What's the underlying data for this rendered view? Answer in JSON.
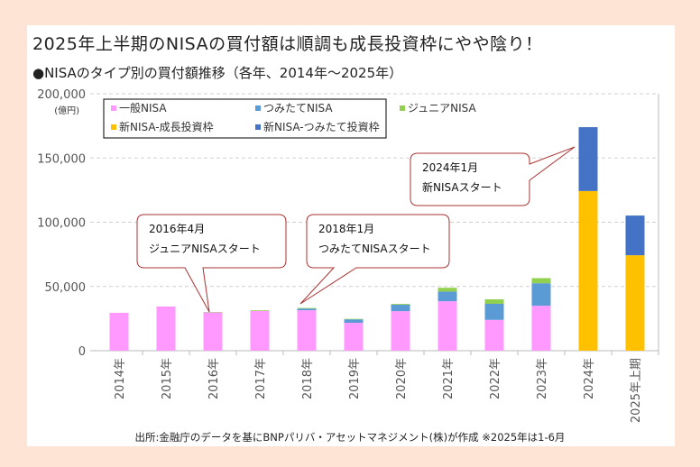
{
  "title": "2025年上半期のNISAの買付額は順調も成長投資枠にやや陰り！",
  "subtitle": "●NISAのタイプ別の買付額推移（各年、2014年～2025年）",
  "footer": "出所:金融庁のデータを基にBNPパリバ・アセットマネジメント(株)が作成 ※2025年は1-6月",
  "chart_data": {
    "type": "bar",
    "stacked": true,
    "ylabel": "(億円)",
    "ylim": [
      0,
      200000
    ],
    "yticks": [
      "0",
      "50,000",
      "100,000",
      "150,000",
      "200,000"
    ],
    "ytick_values": [
      0,
      50000,
      100000,
      150000,
      200000
    ],
    "grid": "horizontal dashed",
    "legend_placement": "top-left",
    "categories": [
      "2014年",
      "2015年",
      "2016年",
      "2017年",
      "2018年",
      "2019年",
      "2020年",
      "2021年",
      "2022年",
      "2023年",
      "2024年",
      "2025年上期"
    ],
    "series": [
      {
        "name": "一般NISA",
        "color": "#ff99ff",
        "values": [
          29500,
          34400,
          29800,
          31000,
          31500,
          21700,
          30800,
          38500,
          24000,
          35000,
          0,
          0
        ]
      },
      {
        "name": "つみたてNISA",
        "color": "#5b9bd5",
        "values": [
          0,
          0,
          0,
          0,
          1300,
          2700,
          5000,
          7500,
          12500,
          17500,
          0,
          0
        ]
      },
      {
        "name": "ジュニアNISA",
        "color": "#92d050",
        "values": [
          0,
          0,
          300,
          500,
          500,
          400,
          600,
          3000,
          3500,
          4000,
          0,
          0
        ]
      },
      {
        "name": "新NISA-成長投資枠",
        "color": "#ffc000",
        "values": [
          0,
          0,
          0,
          0,
          0,
          0,
          0,
          0,
          0,
          0,
          124300,
          74300
        ]
      },
      {
        "name": "新NISA-つみたて投資枠",
        "color": "#4472c4",
        "values": [
          0,
          0,
          0,
          0,
          0,
          0,
          0,
          0,
          0,
          0,
          49700,
          30900
        ]
      }
    ],
    "annotations": [
      {
        "lines": [
          "2016年4月",
          "ジュニアNISAスタート"
        ],
        "target": "2016年"
      },
      {
        "lines": [
          "2018年1月",
          "つみたてNISAスタート"
        ],
        "target": "2018年"
      },
      {
        "lines": [
          "2024年1月",
          "新NISAスタート"
        ],
        "target": "2024年"
      }
    ]
  }
}
